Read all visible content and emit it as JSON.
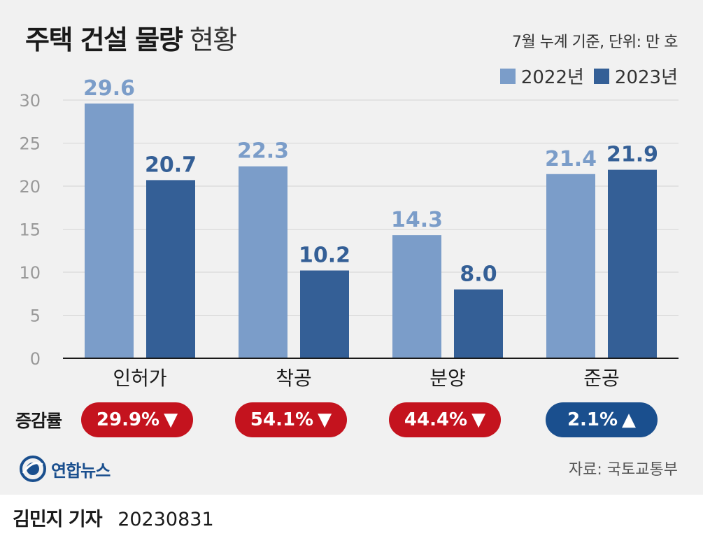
{
  "title_bold": "주택 건설 물량",
  "title_light": "현황",
  "note": "7월 누계 기준, 단위: 만 호",
  "colors": {
    "y2022": "#7b9dc9",
    "y2023": "#345f96",
    "down": "#c4131e",
    "up": "#1a4f8e"
  },
  "chart_data": {
    "type": "bar",
    "categories": [
      "인허가",
      "착공",
      "분양",
      "준공"
    ],
    "series": [
      {
        "name": "2022년",
        "values": [
          29.6,
          22.3,
          14.3,
          21.4
        ]
      },
      {
        "name": "2023년",
        "values": [
          20.7,
          10.2,
          8.0,
          21.9
        ]
      }
    ],
    "value_labels": [
      [
        "29.6",
        "22.3",
        "14.3",
        "21.4"
      ],
      [
        "20.7",
        "10.2",
        "8.0",
        "21.9"
      ]
    ],
    "yticks": [
      "0",
      "5",
      "10",
      "15",
      "20",
      "25",
      "30"
    ],
    "ylim": [
      0,
      30
    ],
    "grid": true,
    "legend_position": "top-right"
  },
  "change": {
    "label": "증감률",
    "items": [
      {
        "text": "29.9%",
        "direction": "down",
        "arrow": "▼"
      },
      {
        "text": "54.1%",
        "direction": "down",
        "arrow": "▼"
      },
      {
        "text": "44.4%",
        "direction": "down",
        "arrow": "▼"
      },
      {
        "text": "2.1%",
        "direction": "up",
        "arrow": "▲"
      }
    ]
  },
  "logo_text": "연합뉴스",
  "source": "자료: 국토교통부",
  "byline": {
    "name": "김민지 기자",
    "date": "20230831"
  }
}
